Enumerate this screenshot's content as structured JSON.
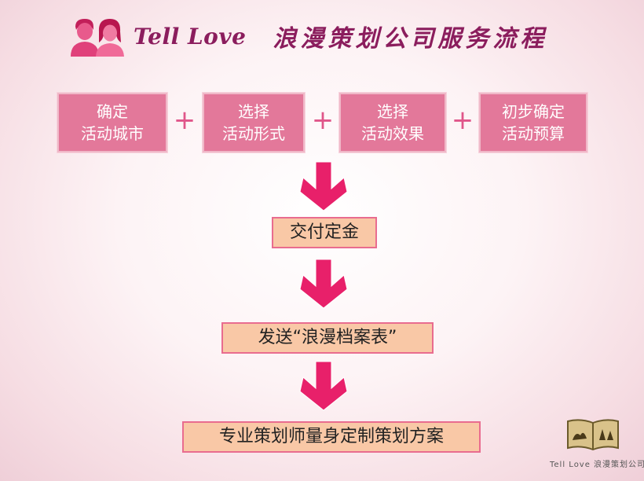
{
  "header": {
    "brand": "Tell Love",
    "title": "浪漫策划公司服务流程"
  },
  "steps": [
    {
      "line1": "确定",
      "line2": "活动城市"
    },
    {
      "line1": "选择",
      "line2": "活动形式"
    },
    {
      "line1": "选择",
      "line2": "活动效果"
    },
    {
      "line1": "初步确定",
      "line2": "活动预算"
    }
  ],
  "plus_symbol": "+",
  "flow": [
    "交付定金",
    "发送“浪漫档案表”",
    "专业策划师量身定制策划方案"
  ],
  "footer_logo": {
    "text": "Tell Love 浪漫策划公司"
  },
  "colors": {
    "title": "#8b1d5d",
    "step_fill": "#e3789a",
    "box_fill": "#f9c8a6",
    "arrow": "#e8206a"
  }
}
